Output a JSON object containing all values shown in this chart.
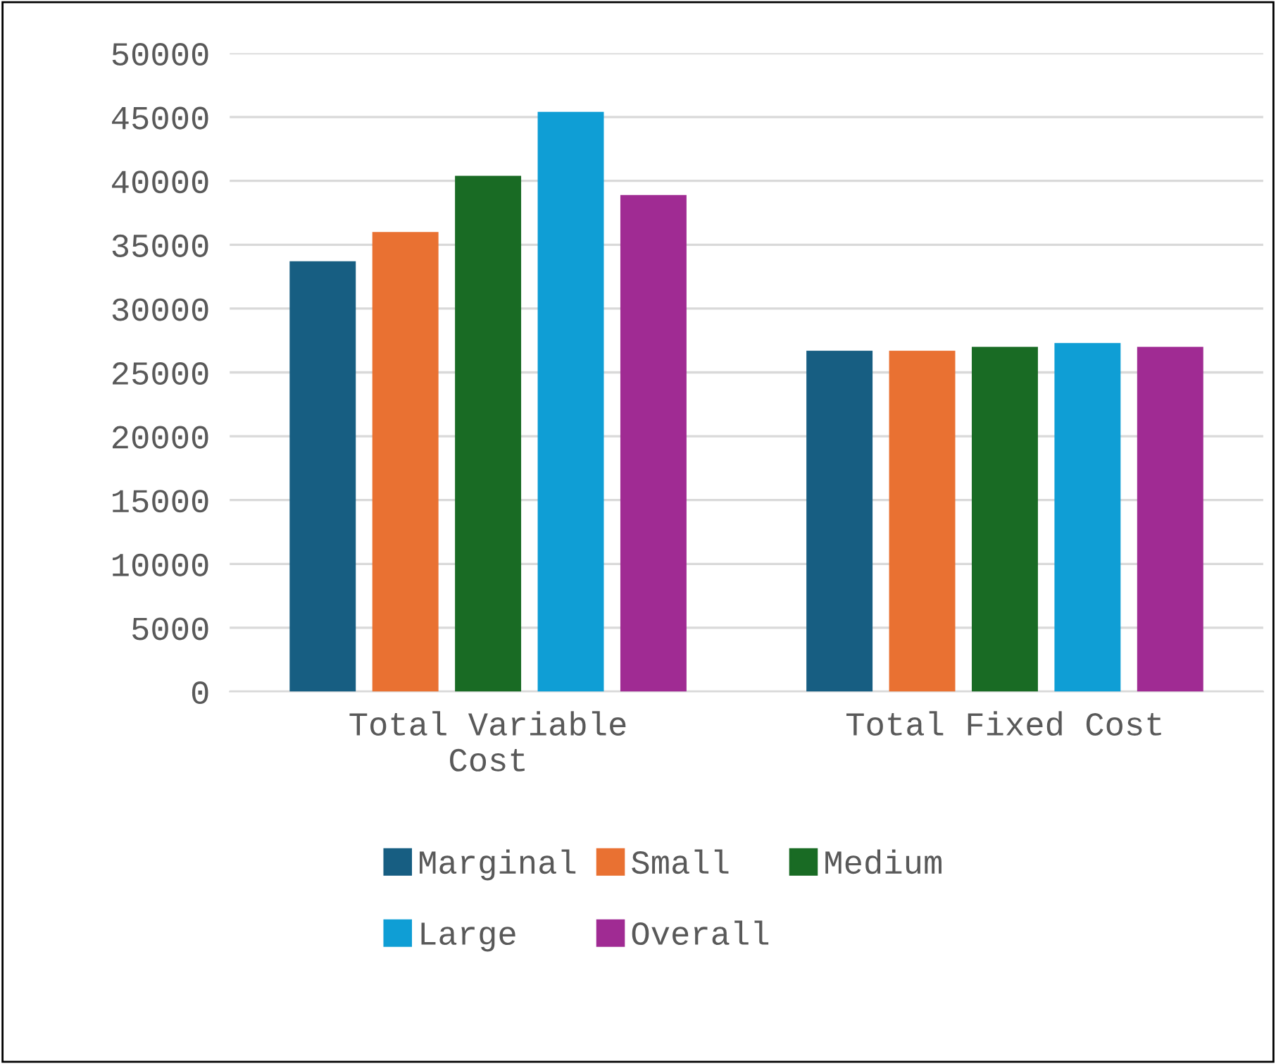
{
  "chart_data": {
    "type": "bar",
    "categories": [
      "Total Variable Cost",
      "Total Fixed Cost"
    ],
    "series": [
      {
        "name": "Marginal",
        "color": "#175e82",
        "values": [
          33700,
          26700
        ]
      },
      {
        "name": "Small",
        "color": "#e97132",
        "values": [
          36000,
          26700
        ]
      },
      {
        "name": "Medium",
        "color": "#196b24",
        "values": [
          40400,
          27000
        ]
      },
      {
        "name": "Large",
        "color": "#0f9ed5",
        "values": [
          45400,
          27300
        ]
      },
      {
        "name": "Overall",
        "color": "#a02b93",
        "values": [
          38900,
          27000
        ]
      }
    ],
    "ylim": [
      0,
      50000
    ],
    "yticks": [
      0,
      5000,
      10000,
      15000,
      20000,
      25000,
      30000,
      35000,
      40000,
      45000,
      50000
    ],
    "grid": "y",
    "legend": "bottom"
  }
}
